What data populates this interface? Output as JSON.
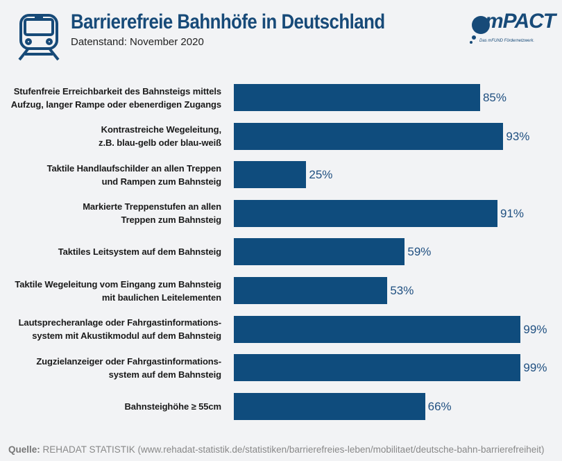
{
  "header": {
    "title": "Barrierefreie Bahnhöfe in Deutschland",
    "subtitle": "Datenstand: November 2020"
  },
  "logo": {
    "text": "mPACT",
    "tagline": "Das mFUND Fördernetzwerk."
  },
  "chart_data": {
    "type": "bar",
    "orientation": "horizontal",
    "categories": [
      [
        "Stufenfreie Erreichbarkeit des Bahnsteigs mittels",
        "Aufzug, langer Rampe oder ebenerdigen Zugangs"
      ],
      [
        "Kontrastreiche Wegeleitung,",
        "z.B. blau-gelb oder blau-weiß"
      ],
      [
        "Taktile Handlaufschilder an allen Treppen",
        "und Rampen zum Bahnsteig"
      ],
      [
        "Markierte Treppenstufen an allen",
        "Treppen zum Bahnsteig"
      ],
      [
        "Taktiles Leitsystem auf dem Bahnsteig"
      ],
      [
        "Taktile Wegeleitung vom Eingang zum Bahnsteig",
        "mit baulichen Leitelementen"
      ],
      [
        "Lautsprecheranlage oder Fahrgastinformations-",
        "system mit Akustikmodul auf dem Bahnsteig"
      ],
      [
        "Zugzielanzeiger oder Fahrgastinformations-",
        "system auf dem Bahnsteig"
      ],
      [
        "Bahnsteighöhe ≥ 55cm"
      ]
    ],
    "values": [
      85,
      93,
      25,
      91,
      59,
      53,
      99,
      99,
      66
    ],
    "value_labels": [
      "85%",
      "93%",
      "25%",
      "91%",
      "59%",
      "53%",
      "99%",
      "99%",
      "66%"
    ],
    "xlim": [
      0,
      100
    ],
    "grid": false,
    "bar_color": "#0f4c7d"
  },
  "footer": {
    "source_label": "Quelle:",
    "source_text": " REHADAT STATISTIK (www.rehadat-statistik.de/statistiken/barrierefreies-leben/mobilitaet/deutsche-bahn-barrierefreiheit)"
  }
}
